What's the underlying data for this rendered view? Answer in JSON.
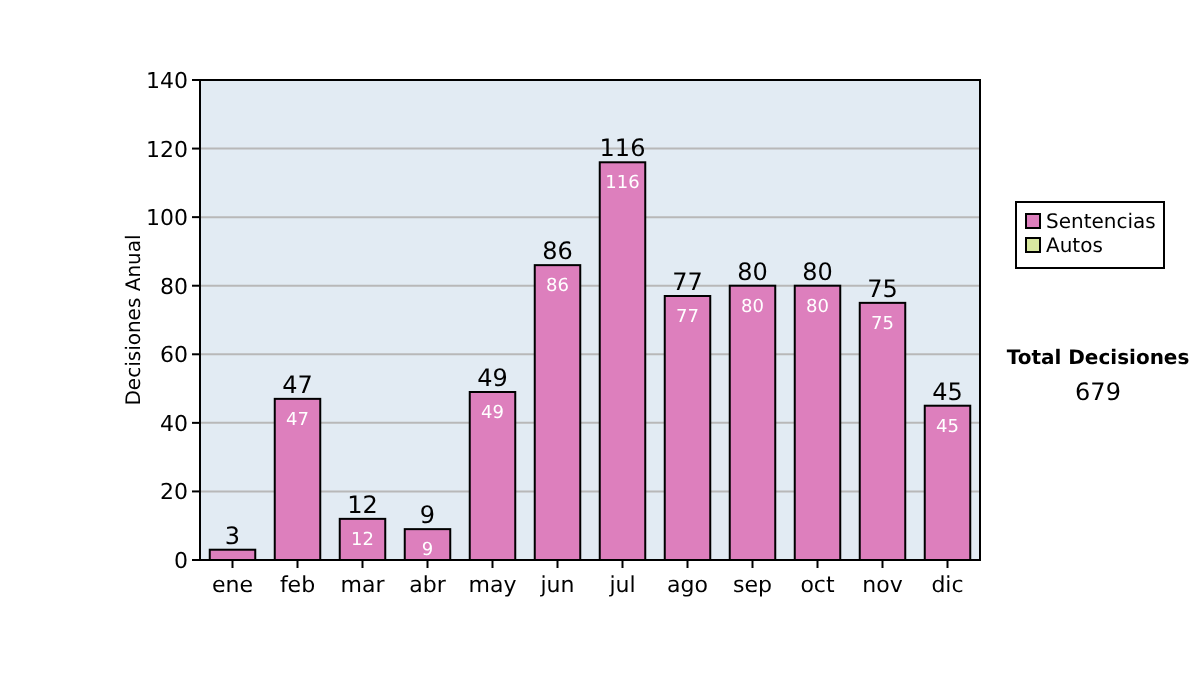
{
  "chart_data": {
    "type": "bar",
    "stacked": true,
    "ylabel": "Decisiones Anual",
    "categories": [
      "ene",
      "feb",
      "mar",
      "abr",
      "may",
      "jun",
      "jul",
      "ago",
      "sep",
      "oct",
      "nov",
      "dic"
    ],
    "series": [
      {
        "name": "Sentencias",
        "color": "#dd7fbd",
        "values": [
          3,
          47,
          12,
          9,
          49,
          86,
          116,
          77,
          80,
          80,
          75,
          45
        ],
        "value_labels": [
          null,
          "47",
          "12",
          "9",
          "49",
          "86",
          "116",
          "77",
          "80",
          "80",
          "75",
          "45"
        ]
      },
      {
        "name": "Autos",
        "color": "#d8e8a0",
        "values": [
          0,
          0,
          0,
          0,
          0,
          0,
          0,
          0,
          0,
          0,
          0,
          0
        ]
      }
    ],
    "totals": [
      "3",
      "47",
      "12",
      "9",
      "49",
      "86",
      "116",
      "77",
      "80",
      "80",
      "75",
      "45"
    ],
    "ylim": [
      0,
      140
    ],
    "yticks": [
      0,
      20,
      40,
      60,
      80,
      100,
      120,
      140
    ],
    "grid": "y",
    "legend": "right",
    "annotations": [
      "Total Decisiones",
      "679"
    ]
  }
}
